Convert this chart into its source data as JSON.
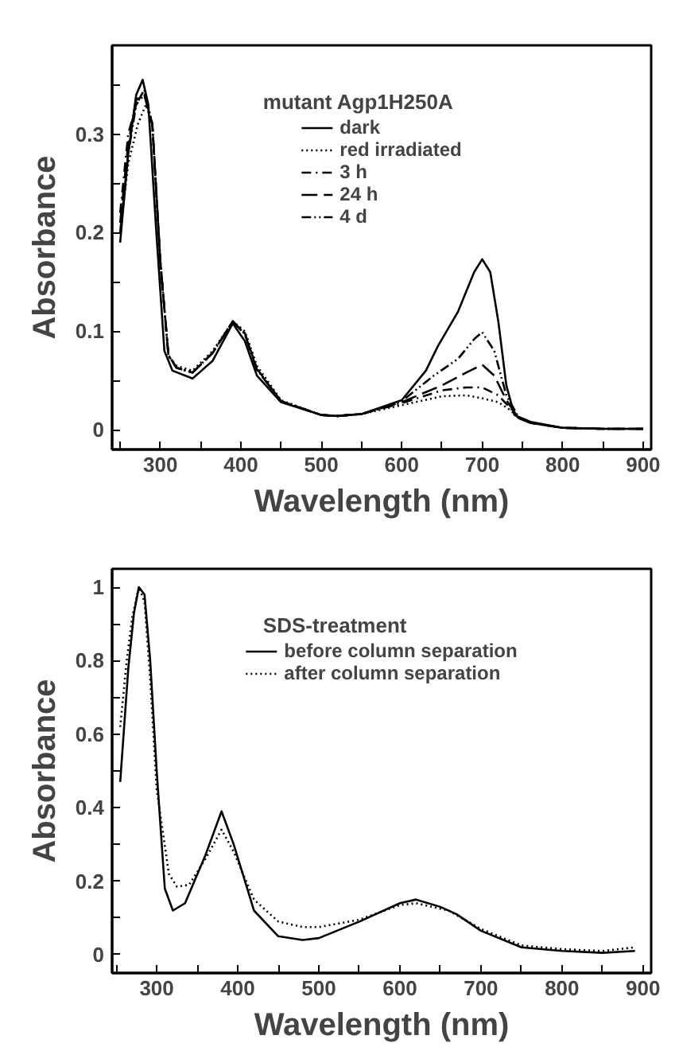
{
  "chart_data": [
    {
      "type": "line",
      "xlabel": "Wavelength (nm)",
      "ylabel": "Absorbance",
      "annotations": [
        "mutant Agp1H250A"
      ],
      "legend": "top",
      "grid": false,
      "xlim": [
        240,
        910
      ],
      "ylim": [
        -0.02,
        0.39
      ],
      "xticks": [
        {
          "value": 250,
          "label": null
        },
        300,
        {
          "value": 350,
          "label": null
        },
        400,
        {
          "value": 450,
          "label": null
        },
        500,
        {
          "value": 550,
          "label": null
        },
        600,
        {
          "value": 650,
          "label": null
        },
        700,
        {
          "value": 750,
          "label": null
        },
        800,
        {
          "value": 850,
          "label": null
        },
        900
      ],
      "yticks": [
        0,
        {
          "value": 0.05,
          "label": null
        },
        0.1,
        {
          "value": 0.15,
          "label": null
        },
        0.2,
        {
          "value": 0.25,
          "label": null
        },
        0.3,
        {
          "value": 0.35,
          "label": null
        }
      ],
      "series": [
        {
          "name": "dark",
          "color": "#000000",
          "line_style": "solid",
          "x": [
            250,
            260,
            270,
            278,
            285,
            295,
            305,
            315,
            340,
            365,
            390,
            405,
            420,
            450,
            500,
            520,
            550,
            600,
            630,
            645,
            670,
            690,
            700,
            710,
            720,
            730,
            740,
            760,
            800,
            850,
            900
          ],
          "values": [
            0.19,
            0.28,
            0.34,
            0.355,
            0.33,
            0.2,
            0.08,
            0.06,
            0.052,
            0.07,
            0.108,
            0.09,
            0.055,
            0.028,
            0.015,
            0.014,
            0.016,
            0.03,
            0.06,
            0.085,
            0.12,
            0.16,
            0.173,
            0.16,
            0.11,
            0.045,
            0.015,
            0.008,
            0.002,
            0.001,
            0.001
          ]
        },
        {
          "name": "red irradiated",
          "color": "#000000",
          "line_style": "dotted",
          "x": [
            250,
            260,
            272,
            282,
            290,
            300,
            310,
            320,
            340,
            365,
            390,
            405,
            420,
            450,
            500,
            520,
            550,
            600,
            650,
            680,
            700,
            720,
            735,
            745,
            760,
            800,
            850,
            900
          ],
          "values": [
            0.2,
            0.27,
            0.31,
            0.33,
            0.31,
            0.17,
            0.075,
            0.065,
            0.06,
            0.08,
            0.11,
            0.1,
            0.065,
            0.03,
            0.015,
            0.014,
            0.016,
            0.025,
            0.034,
            0.035,
            0.032,
            0.028,
            0.02,
            0.012,
            0.007,
            0.002,
            0.001,
            0.001
          ]
        },
        {
          "name": "3 h",
          "color": "#000000",
          "line_style": "dashdot",
          "x": [
            250,
            260,
            270,
            280,
            290,
            300,
            310,
            320,
            340,
            365,
            390,
            405,
            420,
            450,
            500,
            520,
            550,
            600,
            650,
            680,
            700,
            720,
            735,
            745,
            760,
            800,
            850,
            900
          ],
          "values": [
            0.22,
            0.3,
            0.33,
            0.34,
            0.31,
            0.17,
            0.075,
            0.063,
            0.058,
            0.078,
            0.11,
            0.098,
            0.062,
            0.029,
            0.015,
            0.014,
            0.016,
            0.027,
            0.04,
            0.043,
            0.043,
            0.035,
            0.022,
            0.012,
            0.007,
            0.002,
            0.001,
            0.001
          ]
        },
        {
          "name": "24 h",
          "color": "#000000",
          "line_style": "dashed",
          "x": [
            250,
            260,
            270,
            280,
            290,
            300,
            310,
            320,
            340,
            365,
            390,
            405,
            420,
            450,
            500,
            520,
            550,
            600,
            650,
            680,
            700,
            715,
            730,
            745,
            760,
            800,
            850,
            900
          ],
          "values": [
            0.21,
            0.29,
            0.335,
            0.34,
            0.31,
            0.17,
            0.076,
            0.063,
            0.058,
            0.078,
            0.11,
            0.097,
            0.061,
            0.029,
            0.015,
            0.014,
            0.016,
            0.028,
            0.045,
            0.058,
            0.066,
            0.055,
            0.03,
            0.012,
            0.007,
            0.002,
            0.001,
            0.001
          ]
        },
        {
          "name": "4 d",
          "color": "#000000",
          "line_style": "dashdotdot",
          "x": [
            250,
            260,
            270,
            280,
            290,
            300,
            310,
            320,
            340,
            365,
            390,
            405,
            420,
            450,
            500,
            520,
            550,
            600,
            640,
            670,
            690,
            700,
            715,
            730,
            745,
            760,
            800,
            850,
            900
          ],
          "values": [
            0.2,
            0.28,
            0.33,
            0.345,
            0.31,
            0.17,
            0.076,
            0.063,
            0.058,
            0.078,
            0.11,
            0.097,
            0.061,
            0.029,
            0.015,
            0.014,
            0.016,
            0.029,
            0.055,
            0.072,
            0.092,
            0.099,
            0.08,
            0.035,
            0.013,
            0.007,
            0.002,
            0.001,
            0.001
          ]
        }
      ]
    },
    {
      "type": "line",
      "xlabel": "Wavelength (nm)",
      "ylabel": "Absorbance",
      "annotations": [
        "SDS-treatment"
      ],
      "legend": "top",
      "grid": false,
      "xlim": [
        245,
        910
      ],
      "ylim": [
        -0.05,
        1.05
      ],
      "xticks": [
        {
          "value": 250,
          "label": null
        },
        300,
        {
          "value": 350,
          "label": null
        },
        400,
        {
          "value": 450,
          "label": null
        },
        500,
        {
          "value": 550,
          "label": null
        },
        600,
        {
          "value": 650,
          "label": null
        },
        700,
        {
          "value": 750,
          "label": null
        },
        800,
        {
          "value": 850,
          "label": null
        },
        900
      ],
      "yticks": [
        0,
        {
          "value": 0.1,
          "label": null
        },
        0.2,
        {
          "value": 0.3,
          "label": null
        },
        0.4,
        {
          "value": 0.5,
          "label": null
        },
        0.6,
        {
          "value": 0.7,
          "label": null
        },
        0.8,
        {
          "value": 0.9,
          "label": null
        },
        1
      ],
      "series": [
        {
          "name": "before column separation",
          "color": "#000000",
          "line_style": "solid",
          "x": [
            255,
            265,
            272,
            278,
            285,
            292,
            300,
            310,
            320,
            335,
            360,
            380,
            395,
            420,
            450,
            480,
            500,
            550,
            600,
            620,
            650,
            670,
            700,
            750,
            800,
            850,
            890
          ],
          "values": [
            0.47,
            0.78,
            0.93,
            1.0,
            0.98,
            0.8,
            0.5,
            0.18,
            0.12,
            0.14,
            0.27,
            0.39,
            0.3,
            0.12,
            0.05,
            0.04,
            0.045,
            0.09,
            0.14,
            0.15,
            0.13,
            0.11,
            0.065,
            0.02,
            0.01,
            0.005,
            0.01
          ]
        },
        {
          "name": "after column separation",
          "color": "#000000",
          "line_style": "dotted",
          "x": [
            255,
            263,
            270,
            278,
            285,
            292,
            300,
            315,
            325,
            340,
            360,
            380,
            395,
            420,
            450,
            480,
            500,
            550,
            600,
            620,
            660,
            700,
            750,
            800,
            850,
            890
          ],
          "values": [
            0.62,
            0.8,
            0.92,
            1.0,
            0.96,
            0.75,
            0.45,
            0.22,
            0.185,
            0.19,
            0.26,
            0.34,
            0.28,
            0.15,
            0.09,
            0.075,
            0.075,
            0.095,
            0.135,
            0.14,
            0.12,
            0.07,
            0.025,
            0.015,
            0.01,
            0.02
          ]
        }
      ]
    }
  ]
}
